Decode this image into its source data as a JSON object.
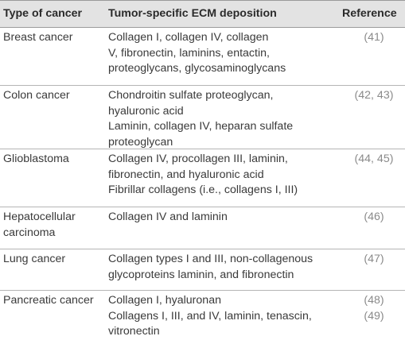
{
  "headers": {
    "type": "Type of cancer",
    "ecm": "Tumor-specific ECM deposition",
    "reference": "Reference"
  },
  "rows": [
    {
      "type": [
        "Breast cancer"
      ],
      "ecm": [
        "Collagen I, collagen IV, collagen",
        "V, fibronectin, laminins, entactin,",
        "proteoglycans, glycosaminoglycans"
      ],
      "refs": [
        "(41)"
      ]
    },
    {
      "type": [
        "Colon cancer"
      ],
      "ecm": [
        "Chondroitin sulfate proteoglycan,",
        "hyaluronic acid",
        "Laminin, collagen IV, heparan sulfate",
        "proteoglycan"
      ],
      "refs": [
        "(42, 43)"
      ]
    },
    {
      "type": [
        "Glioblastoma"
      ],
      "ecm": [
        "Collagen IV, procollagen III, laminin,",
        "fibronectin, and hyaluronic acid",
        "Fibrillar collagens (i.e., collagens I, III)"
      ],
      "refs": [
        "(44, 45)"
      ]
    },
    {
      "type": [
        "Hepatocellular",
        "carcinoma"
      ],
      "ecm": [
        "Collagen IV and laminin"
      ],
      "refs": [
        "(46)"
      ]
    },
    {
      "type": [
        "Lung cancer"
      ],
      "ecm": [
        "Collagen types I and III, non-collagenous",
        "glycoproteins laminin, and fibronectin"
      ],
      "refs": [
        "(47)"
      ]
    },
    {
      "type": [
        "Pancreatic cancer"
      ],
      "ecm": [
        "Collagen I, hyaluronan",
        "Collagens I, III, and IV, laminin, tenascin,",
        "vitronectin"
      ],
      "refs": [
        "(48)",
        "(49)"
      ]
    }
  ]
}
